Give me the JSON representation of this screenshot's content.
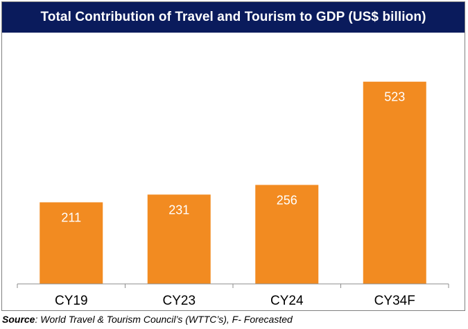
{
  "title": "Total Contribution of Travel and Tourism to GDP (US$ billion)",
  "source": {
    "label": "Source",
    "text": ": World Travel & Tourism Council’s (WTTC’s), F- Forecasted"
  },
  "colors": {
    "title_bg": "#0a1b5c",
    "bar": "#f28b21",
    "data_label": "#ffffff"
  },
  "chart_data": {
    "type": "bar",
    "categories": [
      "CY19",
      "CY23",
      "CY24",
      "CY34F"
    ],
    "values": [
      211,
      231,
      256,
      523
    ],
    "title": "Total Contribution of Travel and Tourism to GDP (US$ billion)",
    "xlabel": "",
    "ylabel": "",
    "ylim": [
      0,
      600
    ],
    "data_labels": [
      "211",
      "231",
      "256",
      "523"
    ],
    "grid": false,
    "legend": "none"
  }
}
